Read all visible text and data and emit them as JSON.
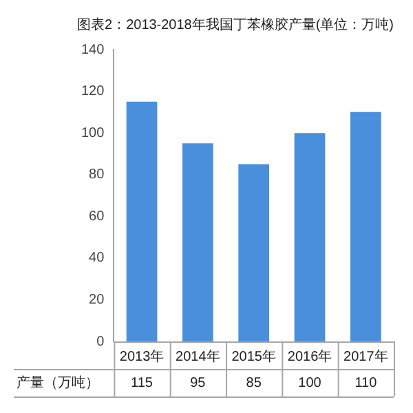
{
  "chart_data": {
    "type": "bar",
    "title": "图表2：2013-2018年我国丁苯橡胶产量(单位：万吨)",
    "categories": [
      "2013年",
      "2014年",
      "2015年",
      "2016年",
      "2017年"
    ],
    "series": [
      {
        "name": "产量（万吨）",
        "color": "#4a8fdc",
        "values": [
          115,
          95,
          85,
          100,
          110
        ]
      }
    ],
    "ylim": [
      0,
      140
    ],
    "yticks": [
      0,
      20,
      40,
      60,
      80,
      100,
      120,
      140
    ],
    "grid": false,
    "legend": false,
    "data_labels": true
  }
}
